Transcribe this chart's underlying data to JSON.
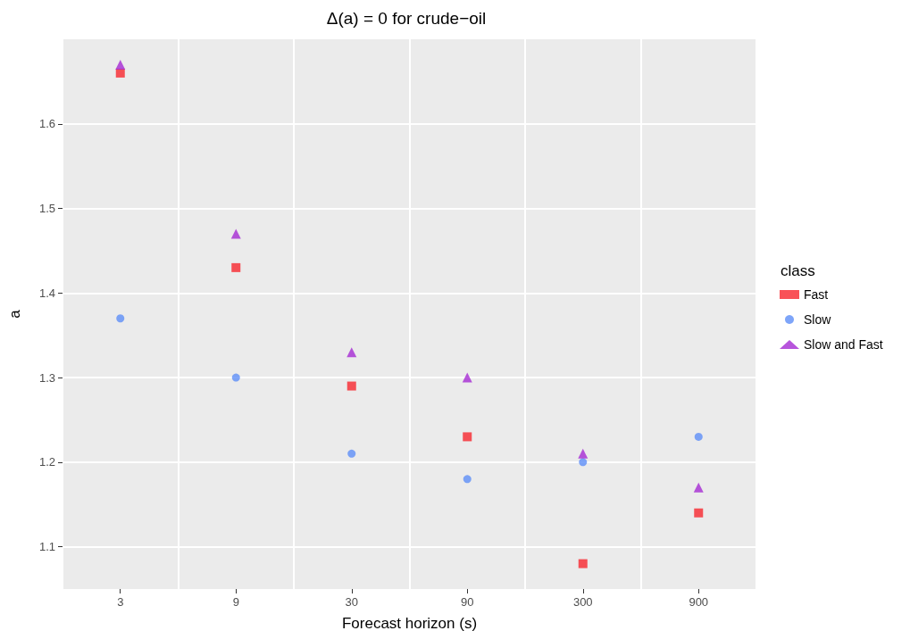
{
  "chart_data": {
    "type": "scatter",
    "title": "Δ(a) = 0 for crude−oil",
    "xlabel": "Forecast horizon (s)",
    "ylabel": "a",
    "legend_title": "class",
    "legend": "right",
    "grid": true,
    "categories": [
      "3",
      "9",
      "30",
      "90",
      "300",
      "900"
    ],
    "ylim": [
      1.05,
      1.7
    ],
    "yticks": [
      1.1,
      1.2,
      1.3,
      1.4,
      1.5,
      1.6
    ],
    "series": [
      {
        "name": "Fast",
        "color": "#f8272e",
        "marker": "square",
        "values": [
          1.66,
          1.43,
          1.29,
          1.23,
          1.08,
          1.14
        ]
      },
      {
        "name": "Slow",
        "color": "#5e8ef8",
        "marker": "circle",
        "values": [
          1.37,
          1.3,
          1.21,
          1.18,
          1.2,
          1.23
        ]
      },
      {
        "name": "Slow and Fast",
        "color": "#a52bd3",
        "marker": "triangle",
        "values": [
          1.67,
          1.47,
          1.33,
          1.3,
          1.21,
          1.17
        ]
      }
    ]
  }
}
